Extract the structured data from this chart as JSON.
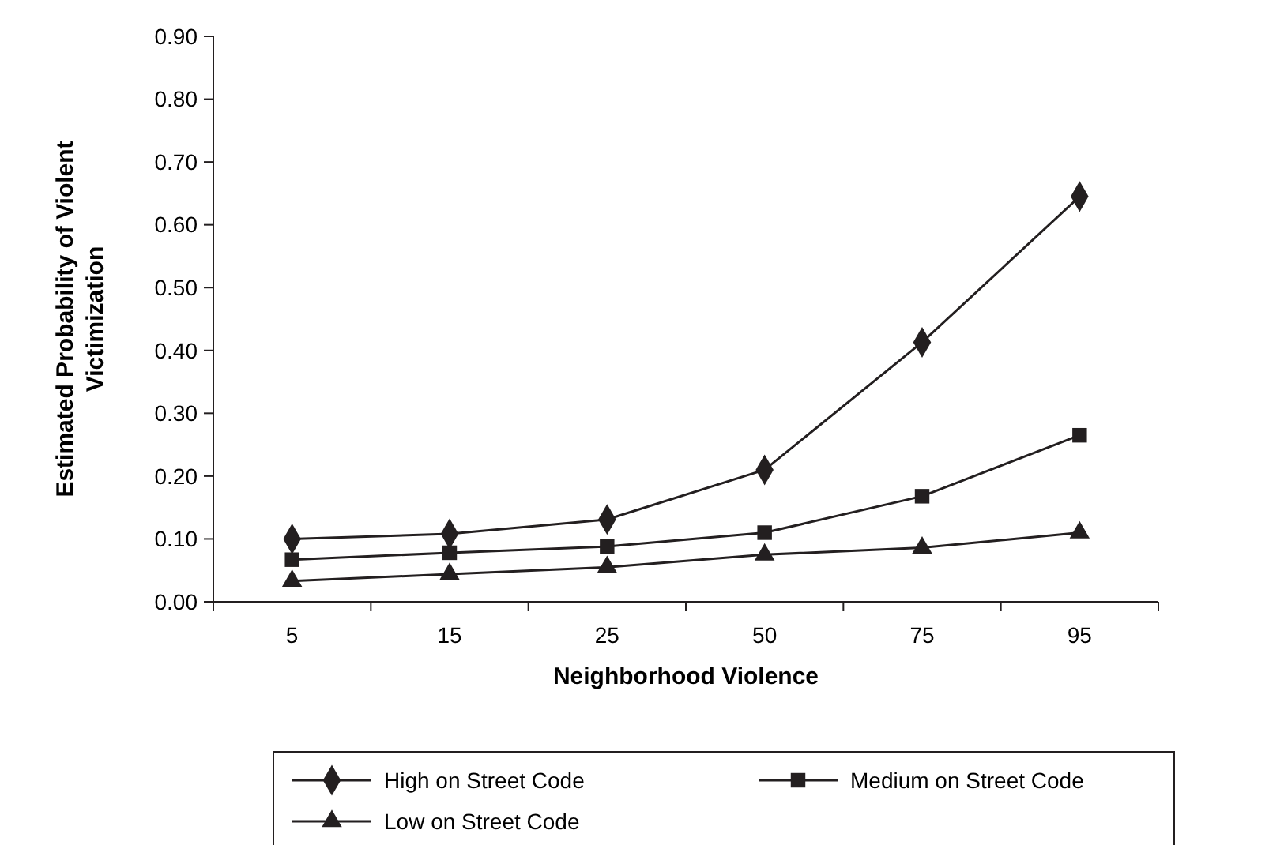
{
  "chart_data": {
    "type": "line",
    "xlabel": "Neighborhood Violence",
    "ylabel": "Estimated Probability of Violent Victimization",
    "categories": [
      "5",
      "15",
      "25",
      "50",
      "75",
      "95"
    ],
    "series": [
      {
        "name": "High on Street Code",
        "color": "#231f20",
        "marker": "diamond",
        "values": [
          0.1,
          0.108,
          0.131,
          0.21,
          0.413,
          0.645
        ]
      },
      {
        "name": "Medium on Street Code",
        "color": "#231f20",
        "marker": "square",
        "values": [
          0.067,
          0.078,
          0.088,
          0.11,
          0.168,
          0.265
        ]
      },
      {
        "name": "Low on Street Code",
        "color": "#231f20",
        "marker": "triangle",
        "values": [
          0.033,
          0.044,
          0.055,
          0.075,
          0.086,
          0.11
        ]
      }
    ],
    "ylim": [
      0,
      0.9
    ],
    "yticks": [
      {
        "value": 0,
        "label": "0.00"
      },
      {
        "value": 0.1,
        "label": "0.10"
      },
      {
        "value": 0.2,
        "label": "0.20"
      },
      {
        "value": 0.3,
        "label": "0.30"
      },
      {
        "value": 0.4,
        "label": "0.40"
      },
      {
        "value": 0.5,
        "label": "0.50"
      },
      {
        "value": 0.6,
        "label": "0.60"
      },
      {
        "value": 0.7,
        "label": "0.70"
      },
      {
        "value": 0.8,
        "label": "0.80"
      },
      {
        "value": 0.9,
        "label": "0.90"
      }
    ],
    "grid": false,
    "legend": "bottom",
    "line_style": "solid"
  }
}
